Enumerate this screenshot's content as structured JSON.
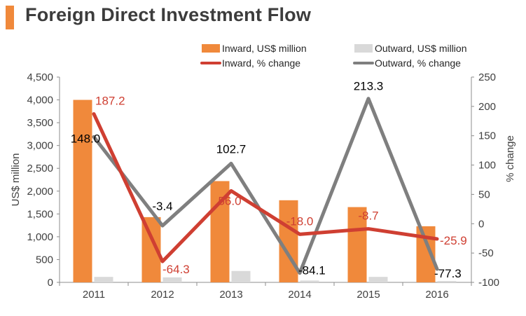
{
  "header": {
    "title": "Foreign Direct Investment Flow",
    "accent_color": "#f0893b"
  },
  "chart_data": {
    "type": "bar+line",
    "title": "Foreign Direct Investment Flow",
    "categories": [
      "2011",
      "2012",
      "2013",
      "2014",
      "2015",
      "2016"
    ],
    "ylabel_left": "US$ million",
    "ylabel_right": "% change",
    "ylim_left": [
      0,
      4500
    ],
    "ylim_right": [
      -100,
      250
    ],
    "yticks_left": [
      "0",
      "500",
      "1,000",
      "1,500",
      "2,000",
      "2,500",
      "3,000",
      "3,500",
      "4,000",
      "4,500"
    ],
    "yticks_right": [
      "-100",
      "-50",
      "0",
      "50",
      "100",
      "150",
      "200",
      "250"
    ],
    "bar_series": [
      {
        "name": "Inward, US$ million",
        "color": "#f0893b",
        "values": [
          4000,
          1430,
          2220,
          1800,
          1650,
          1230
        ]
      },
      {
        "name": "Outward, US$ million",
        "color": "#d9d9d9",
        "values": [
          120,
          110,
          250,
          40,
          120,
          30
        ]
      }
    ],
    "line_series": [
      {
        "name": "Inward, % change",
        "color": "#cf3f32",
        "label_color": "#cf3f32",
        "values": [
          187.2,
          -64.3,
          56.0,
          -18.0,
          -8.7,
          -25.9
        ],
        "labels": [
          "187.2",
          "-64.3",
          "56.0",
          "-18.0",
          "-8.7",
          "-25.9"
        ]
      },
      {
        "name": "Outward, % change",
        "color": "#7f7f7f",
        "label_color": "#000000",
        "values": [
          148.0,
          -3.4,
          102.7,
          -84.1,
          213.3,
          -77.3
        ],
        "labels": [
          "148.0",
          "-3.4",
          "102.7",
          "-84.1",
          "213.3",
          "-77.3"
        ]
      }
    ],
    "legend": {
      "position": "top",
      "items": [
        "Inward, US$ million",
        "Outward, US$ million",
        "Inward, % change",
        "Outward, % change"
      ]
    },
    "grid": false
  }
}
